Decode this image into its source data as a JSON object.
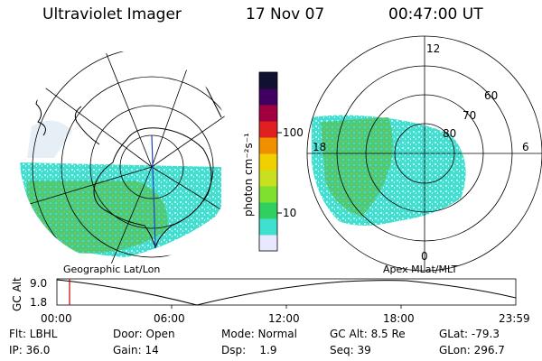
{
  "header": {
    "instrument": "Ultraviolet Imager",
    "date": "17 Nov 07",
    "time": "00:47:00 UT"
  },
  "left_map": {
    "caption": "Geographic Lat/Lon"
  },
  "right_map": {
    "caption": "Apex MLat/MLT",
    "mlt_labels": {
      "top": "12",
      "left": "18",
      "right": "6",
      "bottom": "0"
    },
    "lat_labels": [
      "60",
      "70",
      "80"
    ]
  },
  "colorbar": {
    "unit_label": "photon cm⁻²s⁻¹",
    "ticks": [
      "100",
      "10"
    ],
    "colors": [
      "#e8e8ff",
      "#40e0d0",
      "#30d060",
      "#80e030",
      "#c8e020",
      "#f0d000",
      "#f09000",
      "#e02020",
      "#a00040",
      "#400060",
      "#101030"
    ]
  },
  "altitude_plot": {
    "ylabel": "GC Alt",
    "yticks": [
      "9.0",
      "1.8"
    ],
    "xticks": [
      "00:00",
      "06:00",
      "12:00",
      "18:00",
      "23:59"
    ],
    "marker_color": "#c00000"
  },
  "footer": {
    "col1": [
      "Flt: LBHL",
      "IP: 36.0"
    ],
    "col2": [
      "Door: Open",
      "Gain: 14"
    ],
    "col3": [
      "Mode: Normal",
      "Dsp:    1.9"
    ],
    "col4": [
      "GC Alt: 8.5 Re",
      "Seq: 39"
    ],
    "col5": [
      "GLat: -79.3",
      "GLon: 296.7"
    ]
  }
}
